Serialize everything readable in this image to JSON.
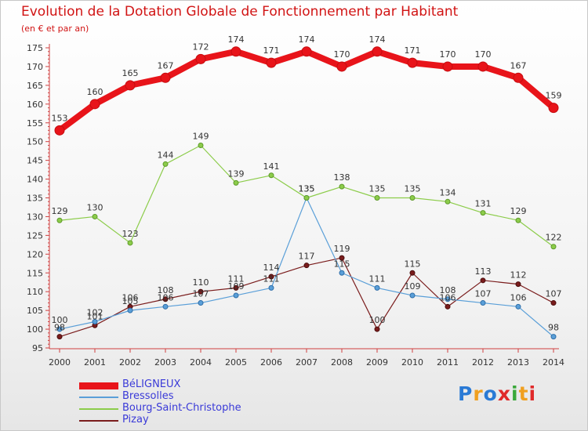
{
  "chart_data": {
    "type": "line",
    "title": "Evolution de la Dotation Globale de Fonctionnement par Habitant",
    "subtitle": "(en € et par an)",
    "x": [
      2000,
      2001,
      2002,
      2003,
      2004,
      2005,
      2006,
      2007,
      2008,
      2009,
      2010,
      2011,
      2012,
      2013,
      2014
    ],
    "ylim": [
      95,
      175
    ],
    "yticks": [
      95,
      100,
      105,
      110,
      115,
      120,
      125,
      130,
      135,
      140,
      145,
      150,
      155,
      160,
      165,
      170,
      175
    ],
    "grid": false,
    "legend_position": "bottom-left",
    "series": [
      {
        "name": "BéLIGNEUX",
        "color": "#e8141a",
        "values": [
          153,
          160,
          165,
          167,
          172,
          174,
          171,
          174,
          170,
          174,
          171,
          170,
          170,
          167,
          159
        ]
      },
      {
        "name": "Bressolles",
        "color": "#5a9fd8",
        "values": [
          100,
          102,
          105,
          106,
          107,
          109,
          111,
          135,
          115,
          111,
          109,
          108,
          107,
          106,
          98
        ]
      },
      {
        "name": "Bourg-Saint-Christophe",
        "color": "#8ccc4a",
        "values": [
          129,
          130,
          123,
          144,
          149,
          139,
          141,
          135,
          138,
          135,
          135,
          134,
          131,
          129,
          122
        ]
      },
      {
        "name": "Pizay",
        "color": "#7a1c1c",
        "values": [
          98,
          101,
          106,
          108,
          110,
          111,
          114,
          117,
          119,
          100,
          115,
          106,
          113,
          112,
          107
        ]
      }
    ]
  },
  "logo_text": "Proxiti"
}
